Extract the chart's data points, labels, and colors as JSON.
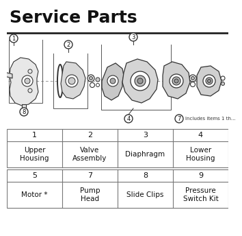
{
  "title": "Service Parts",
  "background_color": "#ffffff",
  "title_fontsize": 18,
  "title_font_weight": "bold",
  "part_numbers_row1": [
    "1",
    "2",
    "3",
    "4"
  ],
  "part_names_row1": [
    "Upper\nHousing",
    "Valve\nAssembly",
    "Diaphragm",
    "Lower\nHousing"
  ],
  "part_numbers_row2": [
    "5",
    "7",
    "8",
    "9"
  ],
  "part_names_row2": [
    "Motor *",
    "Pump\nHead",
    "Slide Clips",
    "Pressure\nSwitch Kit"
  ],
  "note_text": "Includes items 1 th...",
  "line_color": "#333333",
  "text_color": "#111111",
  "table_line_color": "#777777"
}
